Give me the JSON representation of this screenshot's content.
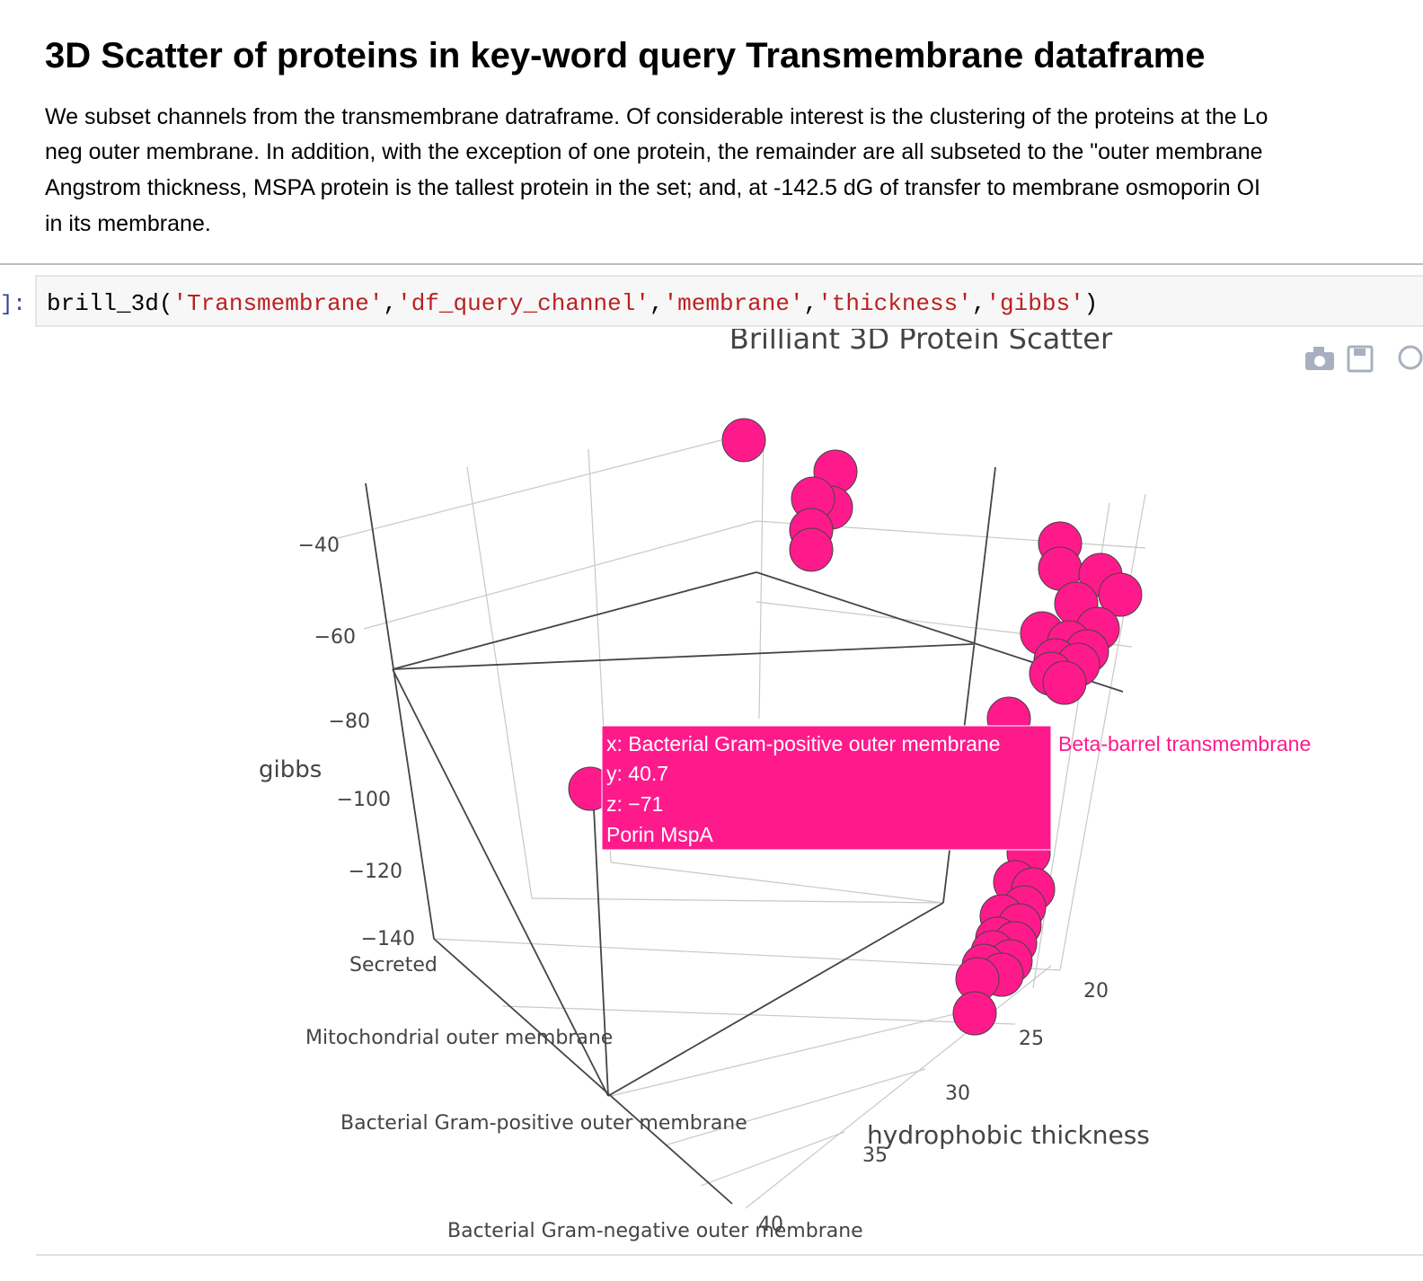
{
  "header": {
    "title": "3D Scatter of proteins in key-word query Transmembrane dataframe"
  },
  "paragraph": [
    "We subset channels from the transmembrane datraframe. Of considerable interest is the clustering of the proteins at the Lo",
    "neg outer membrane. In addition, with the exception of one protein, the remainder are all subseted to the \"outer membrane",
    "Angstrom thickness, MSPA protein is the tallest protein in the set; and, at -142.5 dG of transfer to membrane osmoporin OI",
    "in its membrane."
  ],
  "cell": {
    "prompt": "]:",
    "code": [
      {
        "text": "brill_3d(",
        "color": "#000000"
      },
      {
        "text": "'Transmembrane'",
        "color": "#ba2121"
      },
      {
        "text": ",",
        "color": "#000000"
      },
      {
        "text": "'df_query_channel'",
        "color": "#ba2121"
      },
      {
        "text": ",",
        "color": "#000000"
      },
      {
        "text": "'membrane'",
        "color": "#ba2121"
      },
      {
        "text": ",",
        "color": "#000000"
      },
      {
        "text": "'thickness'",
        "color": "#ba2121"
      },
      {
        "text": ",",
        "color": "#000000"
      },
      {
        "text": "'gibbs'",
        "color": "#ba2121"
      },
      {
        "text": ")",
        "color": "#000000"
      }
    ]
  },
  "plot": {
    "title": "Brilliant 3D Protein Scatter",
    "z_axis": {
      "title": "gibbs",
      "ticks": [
        "−40",
        "−60",
        "−80",
        "−100",
        "−120",
        "−140"
      ]
    },
    "x_axis": {
      "ticks": [
        "Secreted",
        "Mitochondrial outer membrane",
        "Bacterial Gram-positive outer membrane",
        "Bacterial Gram-negative outer membrane"
      ]
    },
    "y_axis": {
      "title": "hydrophobic thickness",
      "ticks": [
        "20",
        "25",
        "30",
        "35",
        "40"
      ]
    },
    "tooltip": {
      "lines": [
        "x: Bacterial Gram-positive outer membrane",
        "y: 40.7",
        "z: −71",
        "Porin MspA"
      ],
      "trace": "Beta-barrel transmembrane"
    }
  }
}
